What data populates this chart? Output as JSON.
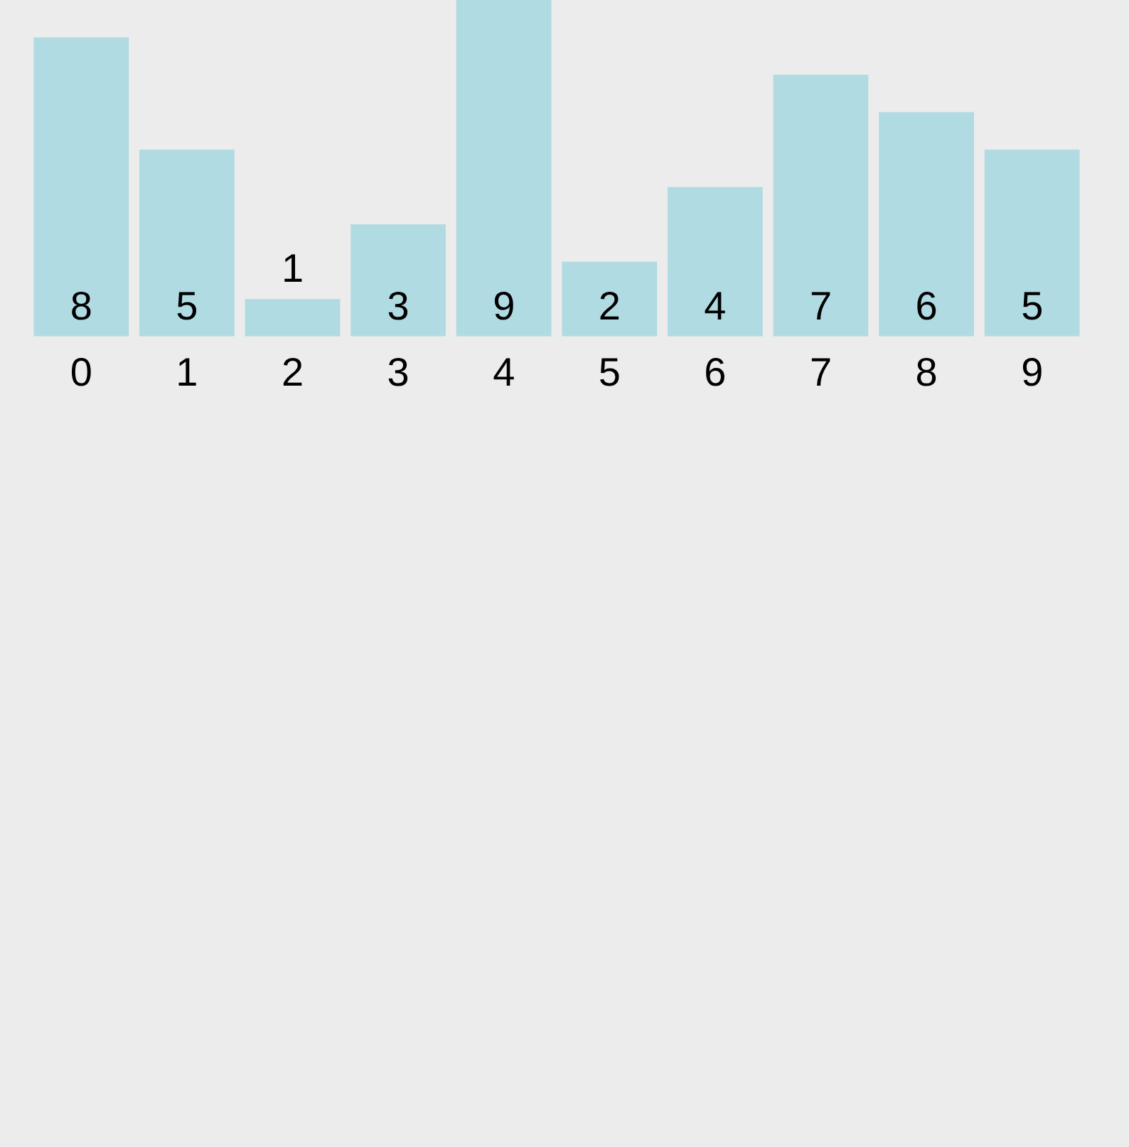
{
  "chart_data": {
    "type": "bar",
    "categories": [
      "0",
      "1",
      "2",
      "3",
      "4",
      "5",
      "6",
      "7",
      "8",
      "9"
    ],
    "values": [
      8,
      5,
      1,
      3,
      9,
      2,
      4,
      7,
      6,
      5
    ],
    "color": "#b0dbe3",
    "data_labels": true
  }
}
